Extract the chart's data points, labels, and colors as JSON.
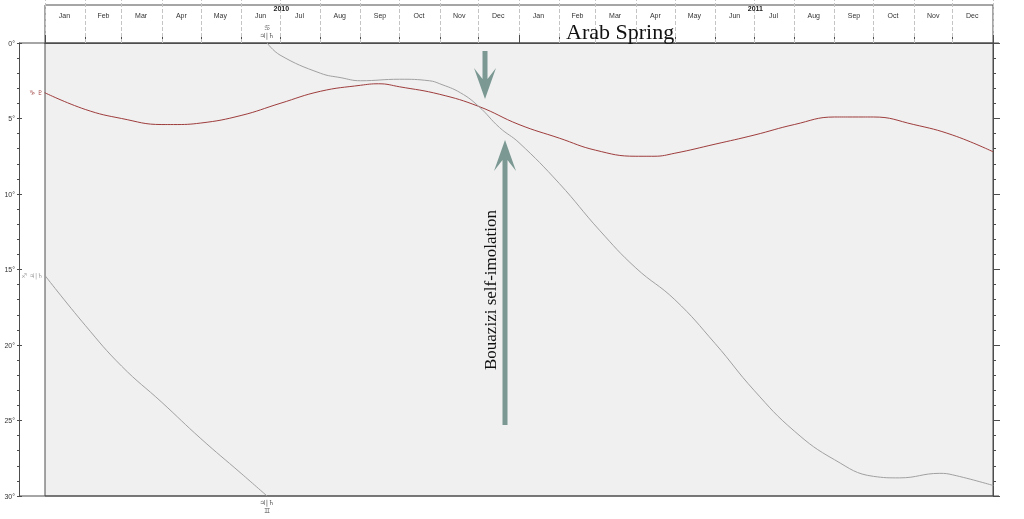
{
  "chart_data": {
    "type": "line",
    "title": "Arab Spring",
    "xlim": [
      "2010-01-01",
      "2012-01-01"
    ],
    "xticks": [
      {
        "value": "2010-01-01",
        "label": null
      },
      {
        "value": "2010-01-16",
        "label": "Jan"
      },
      {
        "value": "2010-02-01",
        "label": null
      },
      {
        "value": "2010-02-15",
        "label": "Feb"
      },
      {
        "value": "2010-03-01",
        "label": null
      },
      {
        "value": "2010-03-16",
        "label": "Mar"
      },
      {
        "value": "2010-04-01",
        "label": null
      },
      {
        "value": "2010-04-16",
        "label": "Apr"
      },
      {
        "value": "2010-05-01",
        "label": null
      },
      {
        "value": "2010-05-16",
        "label": "May"
      },
      {
        "value": "2010-06-01",
        "label": null
      },
      {
        "value": "2010-06-16",
        "label": "Jun"
      },
      {
        "value": "2010-07-01",
        "label": null
      },
      {
        "value": "2010-07-16",
        "label": "Jul"
      },
      {
        "value": "2010-08-01",
        "label": null
      },
      {
        "value": "2010-08-16",
        "label": "Aug"
      },
      {
        "value": "2010-09-01",
        "label": null
      },
      {
        "value": "2010-09-16",
        "label": "Sep"
      },
      {
        "value": "2010-10-01",
        "label": null
      },
      {
        "value": "2010-10-16",
        "label": "Oct"
      },
      {
        "value": "2010-11-01",
        "label": null
      },
      {
        "value": "2010-11-16",
        "label": "Nov"
      },
      {
        "value": "2010-12-01",
        "label": null
      },
      {
        "value": "2010-12-16",
        "label": "Dec"
      },
      {
        "value": "2011-01-01",
        "label": null
      },
      {
        "value": "2011-01-16",
        "label": "Jan"
      },
      {
        "value": "2011-02-01",
        "label": null
      },
      {
        "value": "2011-02-15",
        "label": "Feb"
      },
      {
        "value": "2011-03-01",
        "label": null
      },
      {
        "value": "2011-03-16",
        "label": "Mar"
      },
      {
        "value": "2011-04-01",
        "label": null
      },
      {
        "value": "2011-04-16",
        "label": "Apr"
      },
      {
        "value": "2011-05-01",
        "label": null
      },
      {
        "value": "2011-05-16",
        "label": "May"
      },
      {
        "value": "2011-06-01",
        "label": null
      },
      {
        "value": "2011-06-16",
        "label": "Jun"
      },
      {
        "value": "2011-07-01",
        "label": null
      },
      {
        "value": "2011-07-16",
        "label": "Jul"
      },
      {
        "value": "2011-08-01",
        "label": null
      },
      {
        "value": "2011-08-16",
        "label": "Aug"
      },
      {
        "value": "2011-09-01",
        "label": null
      },
      {
        "value": "2011-09-16",
        "label": "Sep"
      },
      {
        "value": "2011-10-01",
        "label": null
      },
      {
        "value": "2011-10-16",
        "label": "Oct"
      },
      {
        "value": "2011-11-01",
        "label": null
      },
      {
        "value": "2011-11-16",
        "label": "Nov"
      },
      {
        "value": "2011-12-01",
        "label": null
      },
      {
        "value": "2011-12-16",
        "label": "Dec"
      },
      {
        "value": "2012-01-01",
        "label": null
      }
    ],
    "x2lim": [
      "2010-01-01",
      "2012-01-01"
    ],
    "x2ticks": [
      {
        "value": "2010-01-01",
        "label": null
      },
      {
        "value": "2010-07-02",
        "label": "2010"
      },
      {
        "value": "2011-01-01",
        "label": null
      },
      {
        "value": "2011-07-02",
        "label": "2011"
      },
      {
        "value": "2012-01-01",
        "label": null
      }
    ],
    "ylim": [
      30,
      0
    ],
    "yticks": [
      {
        "value": 0,
        "label": "0°"
      },
      {
        "value": 1,
        "label": null
      },
      {
        "value": 2,
        "label": null
      },
      {
        "value": 3,
        "label": null
      },
      {
        "value": 4,
        "label": null
      },
      {
        "value": 5,
        "label": "5°"
      },
      {
        "value": 6,
        "label": null
      },
      {
        "value": 7,
        "label": null
      },
      {
        "value": 8,
        "label": null
      },
      {
        "value": 9,
        "label": null
      },
      {
        "value": 10,
        "label": "10°"
      },
      {
        "value": 11,
        "label": null
      },
      {
        "value": 12,
        "label": null
      },
      {
        "value": 13,
        "label": null
      },
      {
        "value": 14,
        "label": null
      },
      {
        "value": 15,
        "label": "15°"
      },
      {
        "value": 16,
        "label": null
      },
      {
        "value": 17,
        "label": null
      },
      {
        "value": 18,
        "label": null
      },
      {
        "value": 19,
        "label": null
      },
      {
        "value": 20,
        "label": "20°"
      },
      {
        "value": 21,
        "label": null
      },
      {
        "value": 22,
        "label": null
      },
      {
        "value": 23,
        "label": null
      },
      {
        "value": 24,
        "label": null
      },
      {
        "value": 25,
        "label": "25°"
      },
      {
        "value": 26,
        "label": null
      },
      {
        "value": 27,
        "label": null
      },
      {
        "value": 28,
        "label": null
      },
      {
        "value": 29,
        "label": null
      },
      {
        "value": 30,
        "label": "30°"
      }
    ],
    "grid": "x",
    "series": [
      {
        "name": "♑ ♇",
        "color": "#9e3c3c",
        "x": [
          "2010-01-01",
          "2010-02-01",
          "2010-03-01",
          "2010-04-01",
          "2010-04-10",
          "2010-05-01",
          "2010-06-01",
          "2010-07-01",
          "2010-08-01",
          "2010-09-01",
          "2010-09-15",
          "2010-10-01",
          "2010-11-01",
          "2010-12-01",
          "2011-01-01",
          "2011-02-01",
          "2011-03-01",
          "2011-04-01",
          "2011-04-15",
          "2011-05-01",
          "2011-06-01",
          "2011-07-01",
          "2011-08-01",
          "2011-09-01",
          "2011-09-15",
          "2011-10-01",
          "2011-11-01",
          "2011-12-01",
          "2012-01-01"
        ],
        "values": [
          3.3,
          4.4,
          5.0,
          5.4,
          5.4,
          5.3,
          4.8,
          4.0,
          3.2,
          2.8,
          2.7,
          2.9,
          3.4,
          4.2,
          5.4,
          6.3,
          7.1,
          7.5,
          7.5,
          7.3,
          6.7,
          6.1,
          5.4,
          4.9,
          4.9,
          4.9,
          5.4,
          6.1,
          7.2
        ]
      },
      {
        "name": "♐ ♃|♄",
        "color": "#a0a0a0",
        "x": [
          "2010-01-01",
          "2010-02-01",
          "2010-03-01",
          "2010-04-01",
          "2010-05-01",
          "2010-06-01",
          "2010-06-21"
        ],
        "values": [
          15.4,
          18.7,
          21.4,
          23.8,
          26.2,
          28.5,
          30
        ]
      },
      {
        "color": "#a0a0a0",
        "x": [
          "2010-06-21",
          "2010-07-01",
          "2010-08-01",
          "2010-08-17",
          "2010-09-01",
          "2010-10-01",
          "2010-10-24",
          "2010-11-01",
          "2010-11-17",
          "2010-12-01",
          "2010-12-17",
          "2011-01-01",
          "2011-02-01",
          "2011-03-04",
          "2011-04-01",
          "2011-05-01",
          "2011-06-01",
          "2011-07-01",
          "2011-08-01",
          "2011-09-01",
          "2011-10-01",
          "2011-10-21",
          "2011-11-21",
          "2011-12-01",
          "2012-01-01"
        ],
        "values": [
          0,
          0.8,
          2.0,
          2.3,
          2.5,
          2.4,
          2.5,
          2.7,
          3.3,
          4.2,
          5.6,
          6.6,
          9.3,
          12.4,
          14.9,
          17.0,
          19.9,
          23.0,
          25.7,
          27.6,
          28.7,
          28.8,
          28.5,
          28.6,
          29.3
        ]
      }
    ],
    "annotations": [
      {
        "text": "♋\n♃|♄",
        "x": "2010-06-21",
        "y": 0
      },
      {
        "text": "♃|♄\n♊",
        "x": "2010-06-21",
        "y": 30
      },
      "Bouazizi self-imolation"
    ]
  }
}
